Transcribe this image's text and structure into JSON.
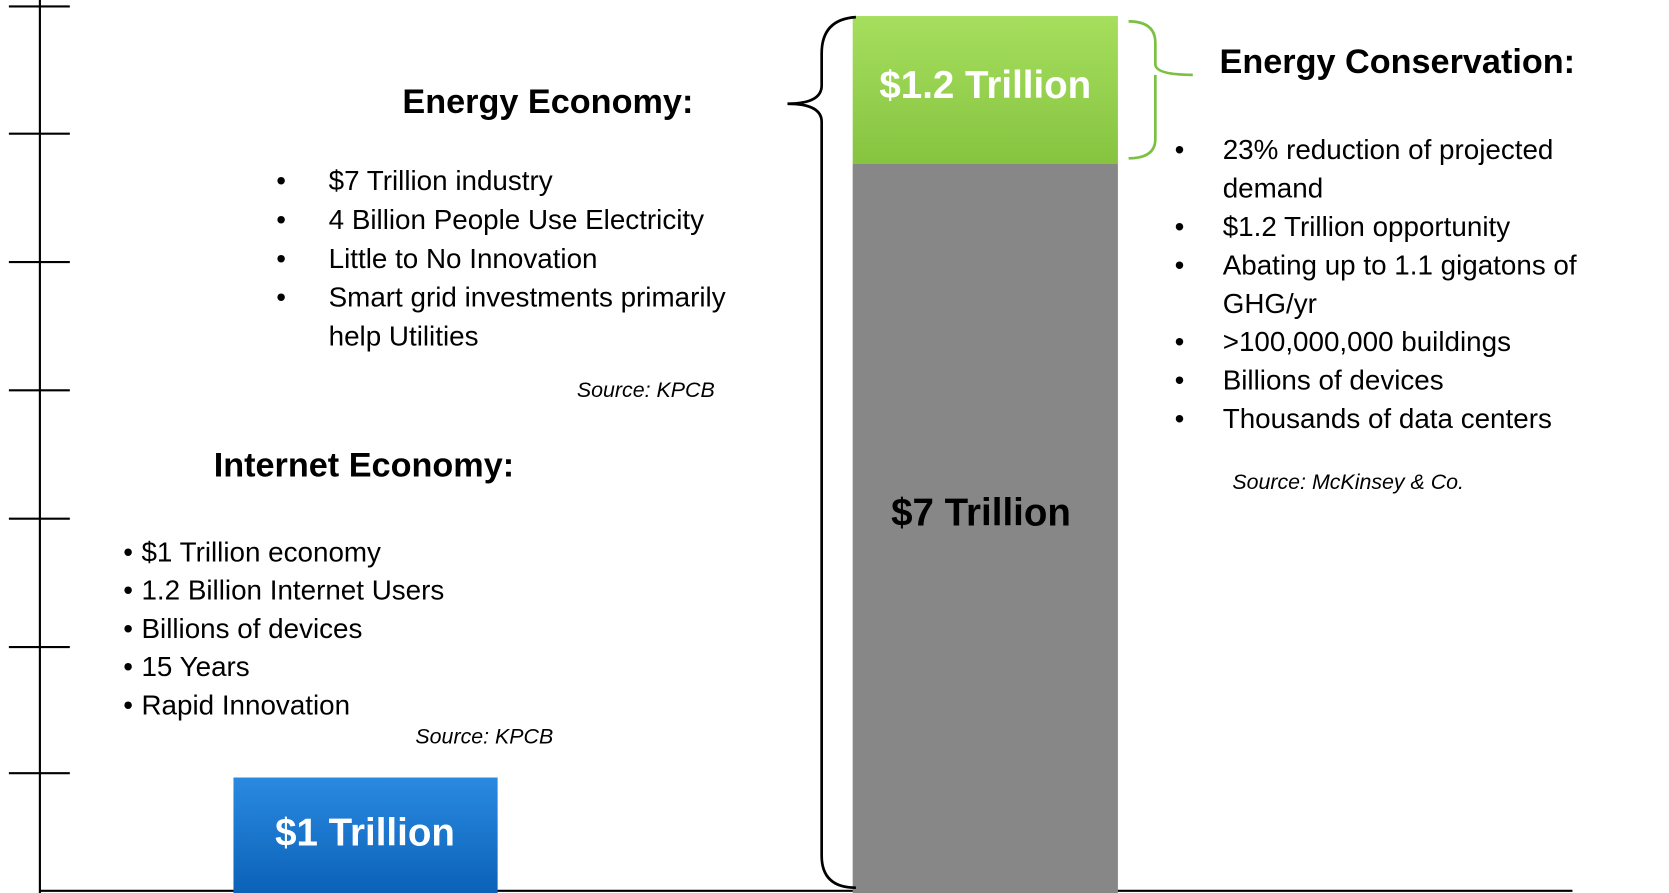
{
  "energy_economy": {
    "title": "Energy Economy:",
    "bullets": [
      [
        "$7 Trillion industry"
      ],
      [
        "4 Billion People Use Electricity"
      ],
      [
        "Little to No Innovation"
      ],
      [
        "Smart grid investments primarily",
        "help Utilities"
      ]
    ],
    "source": "Source: KPCB"
  },
  "internet_economy": {
    "title": "Internet Economy:",
    "bullets": [
      "$1 Trillion economy",
      "1.2 Billion Internet Users",
      "Billions of devices",
      "15 Years",
      "Rapid Innovation"
    ],
    "source": "Source: KPCB"
  },
  "energy_conservation": {
    "title": "Energy Conservation:",
    "bullets": [
      [
        "23% reduction of projected",
        "demand"
      ],
      [
        "$1.2 Trillion opportunity"
      ],
      [
        "Abating up to 1.1 gigatons of",
        "GHG/yr"
      ],
      [
        ">100,000,000 buildings"
      ],
      [
        "Billions of devices"
      ],
      [
        "Thousands of data centers"
      ]
    ],
    "source": "Source: McKinsey & Co."
  },
  "bars": {
    "internet": "$1 Trillion",
    "conservation": "$1.2 Trillion",
    "energy": "$7 Trillion"
  }
}
